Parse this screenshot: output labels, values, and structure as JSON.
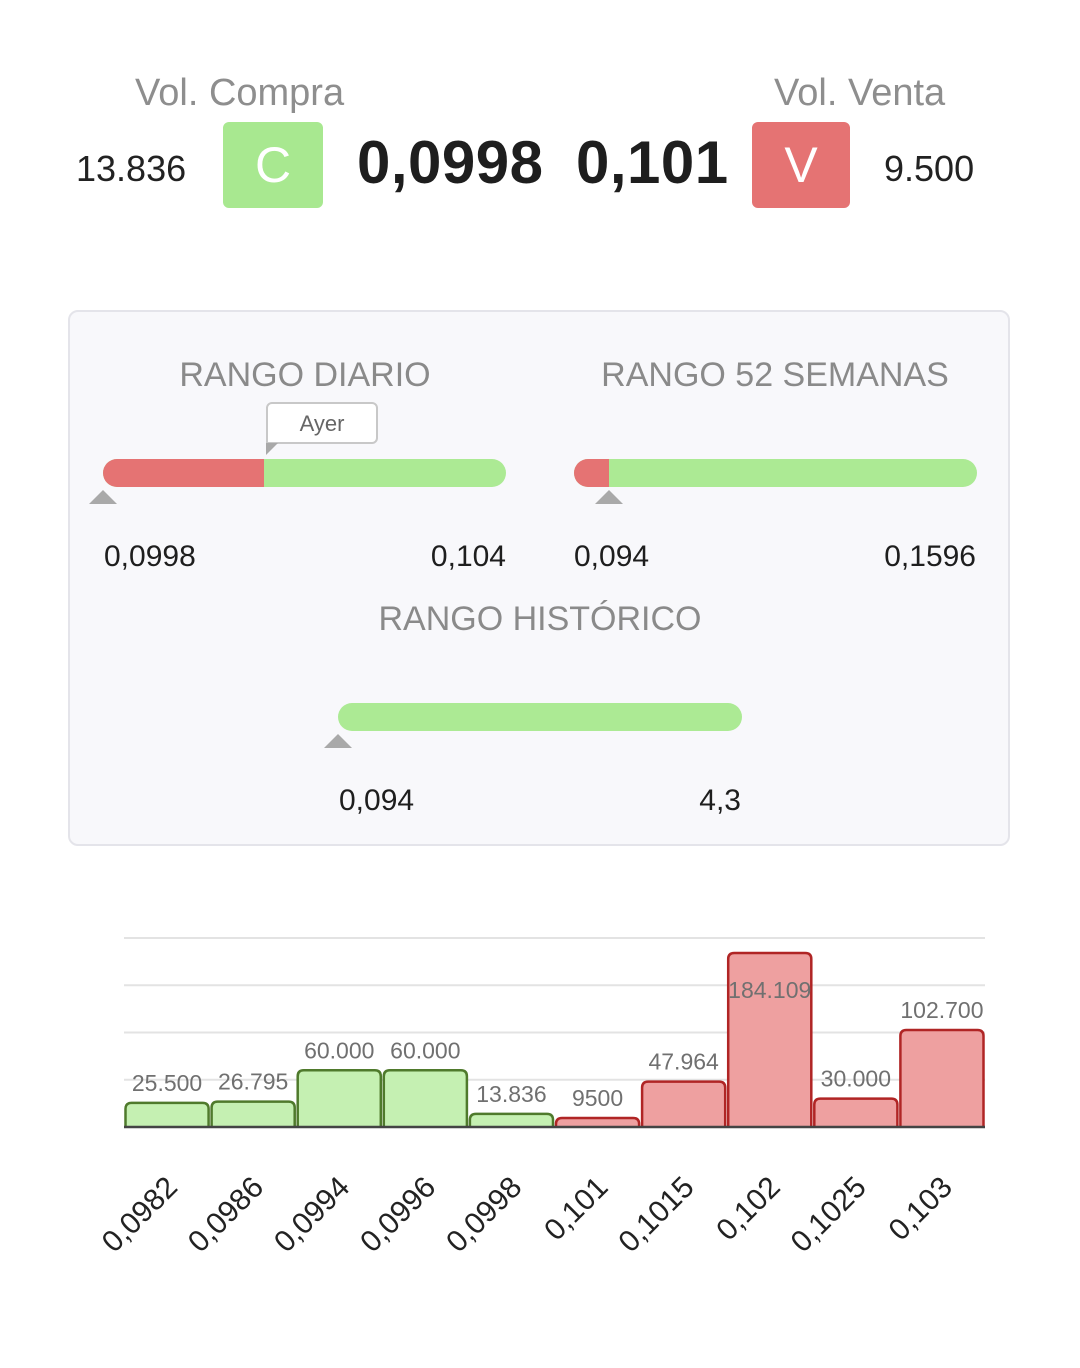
{
  "quote": {
    "buy_volume_label": "Vol. Compra",
    "sell_volume_label": "Vol. Venta",
    "buy_volume": "13.836",
    "sell_volume": "9.500",
    "buy_badge": "C",
    "sell_badge": "V",
    "bid_price": "0,0998",
    "ask_price": "0,101"
  },
  "ranges": {
    "daily": {
      "title": "RANGO DIARIO",
      "min": "0,0998",
      "max": "0,104",
      "red_fraction": 0.4,
      "marker_fraction": 0.0,
      "tooltip": "Ayer"
    },
    "week52": {
      "title": "RANGO 52 SEMANAS",
      "min": "0,094",
      "max": "0,1596",
      "red_fraction": 0.088,
      "marker_fraction": 0.088
    },
    "historic": {
      "title": "RANGO HISTÓRICO",
      "min": "0,094",
      "max": "4,3",
      "red_fraction": 0.0,
      "marker_fraction": 0.0
    }
  },
  "colors": {
    "buy_green": "#a8e890",
    "sell_red": "#e57373",
    "bar_green_fill": "#c5f0b2",
    "bar_green_stroke": "#4f7a2c",
    "bar_red_fill": "#eea0a0",
    "bar_red_stroke": "#b02525"
  },
  "chart_data": {
    "type": "bar",
    "categories": [
      "0,0982",
      "0,0986",
      "0,0994",
      "0,0996",
      "0,0998",
      "0,101",
      "0,1015",
      "0,102",
      "0,1025",
      "0,103"
    ],
    "values": [
      25500,
      26795,
      60000,
      60000,
      13836,
      9500,
      47964,
      184109,
      30000,
      102700
    ],
    "value_labels": [
      "25.500",
      "26.795",
      "60.000",
      "60.000",
      "13.836",
      "9500",
      "47.964",
      "184.109",
      "30.000",
      "102.700"
    ],
    "sides": [
      "buy",
      "buy",
      "buy",
      "buy",
      "buy",
      "sell",
      "sell",
      "sell",
      "sell",
      "sell"
    ],
    "ylim": [
      0,
      200000
    ],
    "grid": true
  }
}
